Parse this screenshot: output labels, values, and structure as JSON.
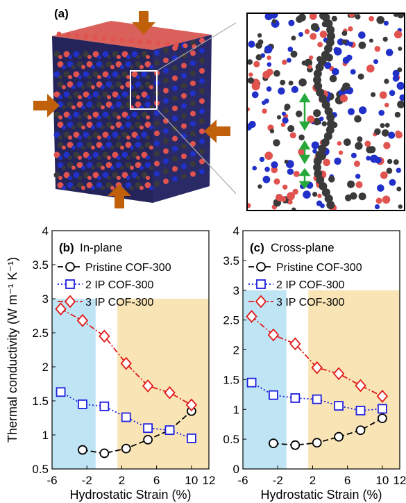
{
  "panel_a_label": "(a)",
  "colors": {
    "pristine": "#000000",
    "ip2": "#1f1fe0",
    "ip3": "#e01818",
    "arrow": "#c0600a",
    "compress_band": "#bfe5f5",
    "tension_band": "#f8e4b5",
    "atom_grey": "#3a3a3a",
    "atom_red": "#e0534f",
    "atom_blue": "#2030c8",
    "strut_green": "#27a83a"
  },
  "chart_data": [
    {
      "type": "line",
      "panel_label": "(b)",
      "title": "In-plane",
      "ylabel": "Thermal conductivity (W m⁻¹ K⁻¹)",
      "xlabel": "Hydrostatic Strain (%)",
      "xlim": [
        -6,
        12
      ],
      "ylim": [
        0.5,
        4
      ],
      "xticks": [
        "-6",
        "-2",
        "2",
        "6",
        "10",
        "12"
      ],
      "yticks": [
        "0.5",
        "1",
        "1.5",
        "2",
        "2.5",
        "3",
        "3.5",
        "4"
      ],
      "bands": [
        {
          "label": "compressive",
          "x": [
            -6,
            -1
          ],
          "y": [
            0.5,
            3
          ]
        },
        {
          "label": "tensile",
          "x": [
            1.5,
            12
          ],
          "y": [
            0.5,
            3
          ]
        }
      ],
      "series": [
        {
          "name": "Pristine COF-300",
          "style": "dashed",
          "marker": "circle",
          "x": [
            -2.5,
            0,
            2.5,
            5,
            7.5,
            10
          ],
          "y": [
            0.78,
            0.73,
            0.8,
            0.93,
            1.07,
            1.35
          ]
        },
        {
          "name": "2 IP COF-300",
          "style": "dotted",
          "marker": "square",
          "x": [
            -5,
            -2.5,
            0,
            2.5,
            5,
            7.5,
            10
          ],
          "y": [
            1.63,
            1.45,
            1.42,
            1.26,
            1.1,
            1.07,
            0.95
          ]
        },
        {
          "name": "3 IP COF-300",
          "style": "dashdot",
          "marker": "diamond",
          "x": [
            -5,
            -2.5,
            0,
            2.5,
            5,
            7.5,
            10
          ],
          "y": [
            2.85,
            2.68,
            2.45,
            2.05,
            1.72,
            1.62,
            1.44
          ]
        }
      ]
    },
    {
      "type": "line",
      "panel_label": "(c)",
      "title": "Cross-plane",
      "ylabel": "",
      "xlabel": "Hydrostatic Strain (%)",
      "xlim": [
        -6,
        12
      ],
      "ylim": [
        0,
        4
      ],
      "xticks": [
        "-6",
        "-2",
        "2",
        "6",
        "10",
        "12"
      ],
      "yticks": [
        "0",
        "0.5",
        "1",
        "1.5",
        "2",
        "2.5",
        "3",
        "3.5",
        "4"
      ],
      "bands": [
        {
          "label": "compressive",
          "x": [
            -6,
            -1
          ],
          "y": [
            0,
            3
          ]
        },
        {
          "label": "tensile",
          "x": [
            1.5,
            12
          ],
          "y": [
            0,
            3
          ]
        }
      ],
      "series": [
        {
          "name": "Pristine COF-300",
          "style": "dashed",
          "marker": "circle",
          "x": [
            -2.5,
            0,
            2.5,
            5,
            7.5,
            10
          ],
          "y": [
            0.43,
            0.4,
            0.44,
            0.54,
            0.65,
            0.85
          ]
        },
        {
          "name": "2 IP COF-300",
          "style": "dotted",
          "marker": "square",
          "x": [
            -5,
            -2.5,
            0,
            2.5,
            5,
            7.5,
            10
          ],
          "y": [
            1.45,
            1.24,
            1.19,
            1.17,
            1.06,
            0.98,
            1.01
          ]
        },
        {
          "name": "3 IP COF-300",
          "style": "dashdot",
          "marker": "diamond",
          "x": [
            -5,
            -2.5,
            0,
            2.5,
            5,
            7.5,
            10
          ],
          "y": [
            2.56,
            2.25,
            2.1,
            1.7,
            1.6,
            1.4,
            1.22
          ]
        }
      ]
    }
  ]
}
